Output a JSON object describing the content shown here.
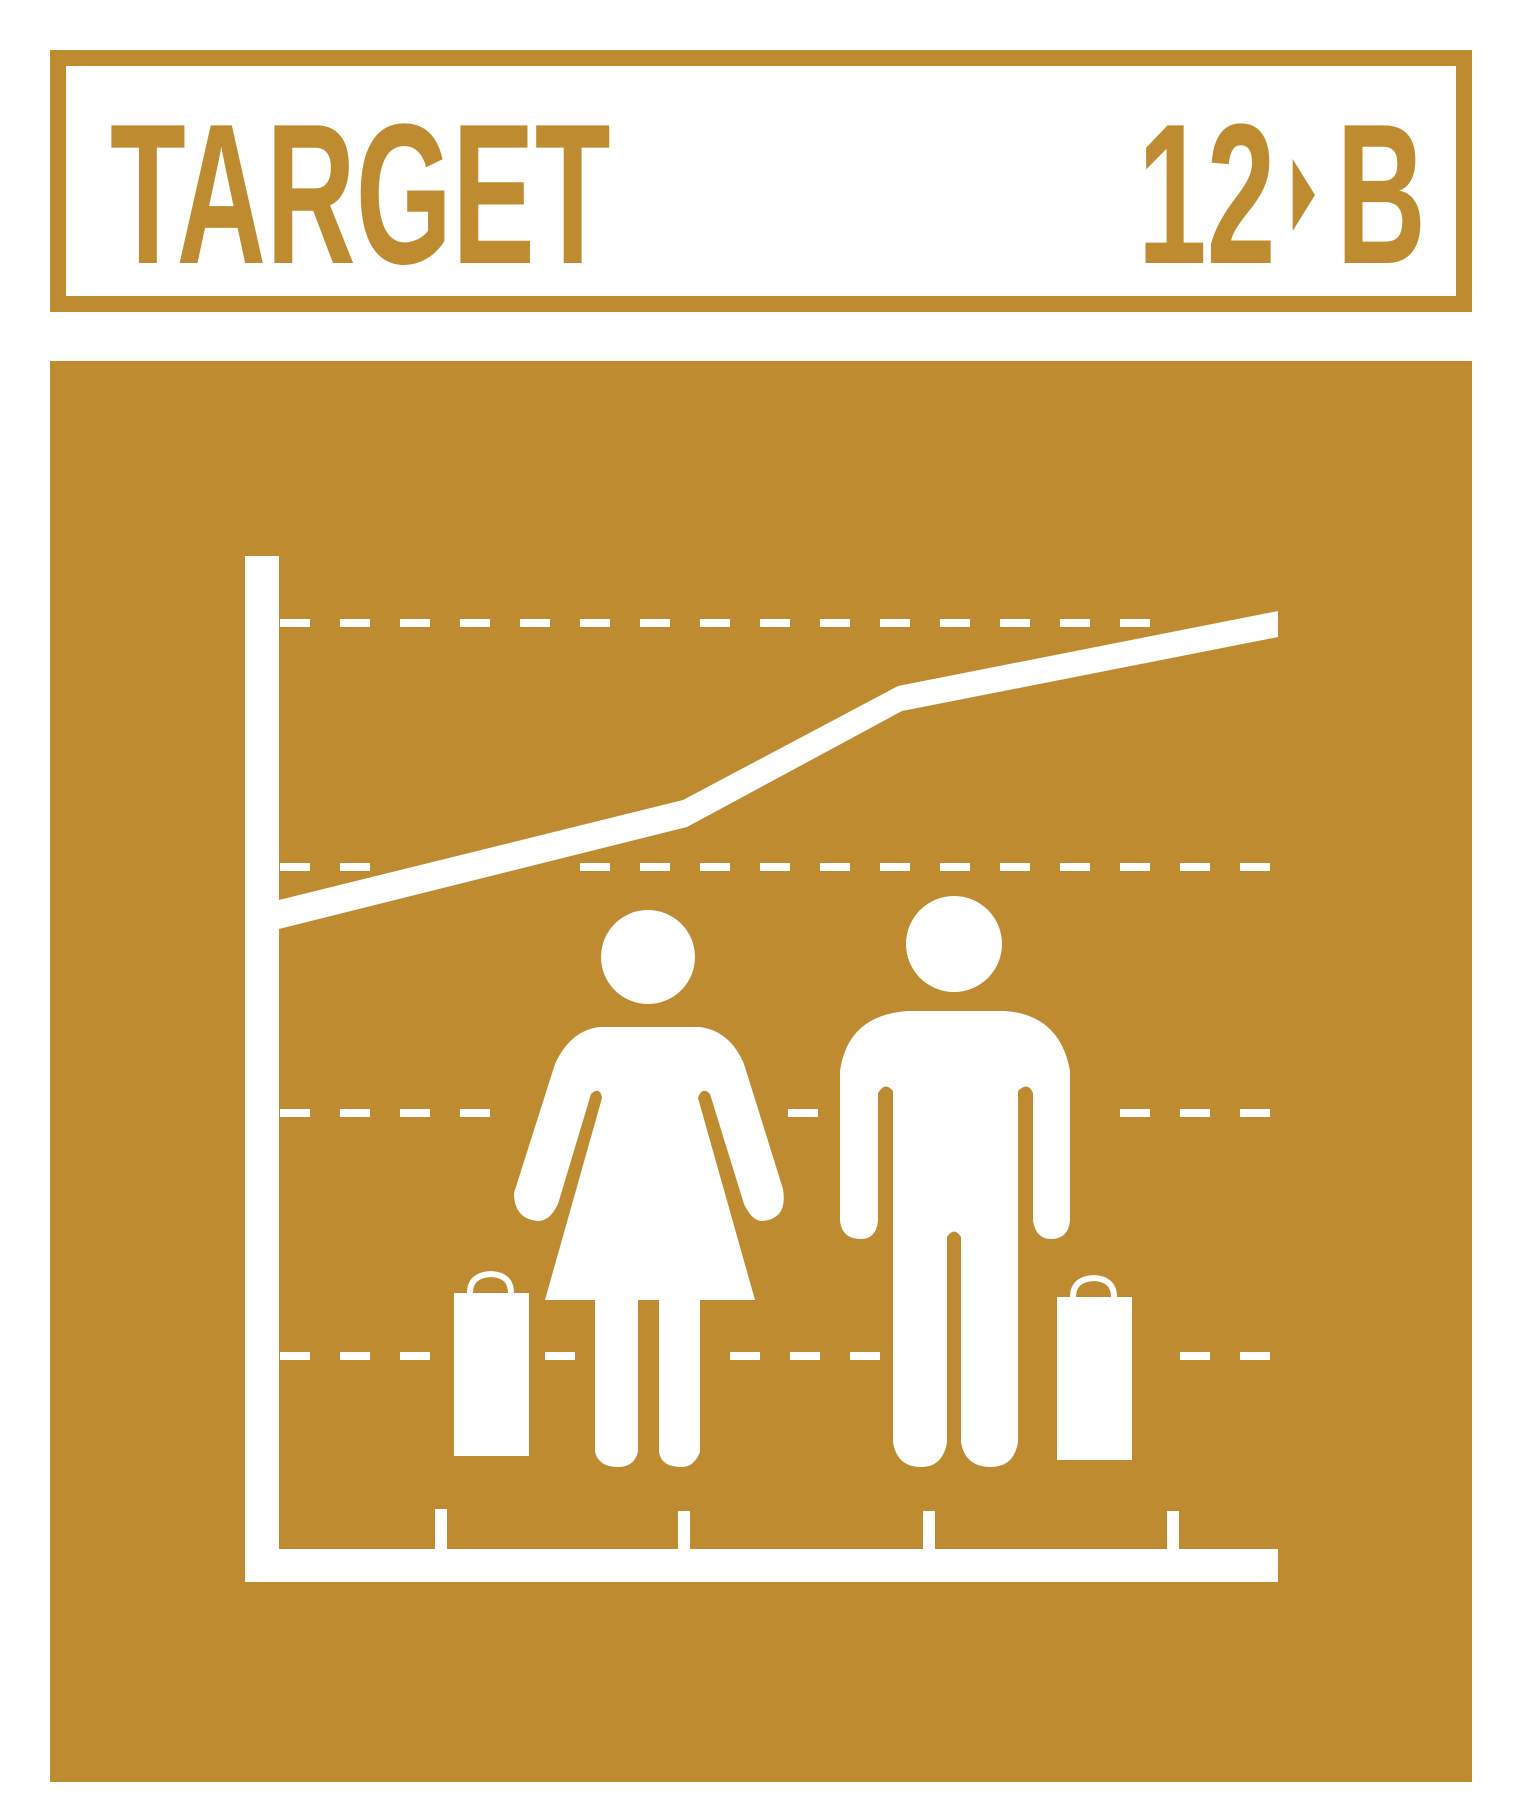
{
  "header": {
    "label": "TARGET",
    "goal_number": "12",
    "target_letter": "B"
  },
  "icon": {
    "name": "trend-chart-with-shoppers-icon",
    "accent_color": "#bf8b30",
    "foreground_color": "#ffffff",
    "trend": "increasing"
  }
}
